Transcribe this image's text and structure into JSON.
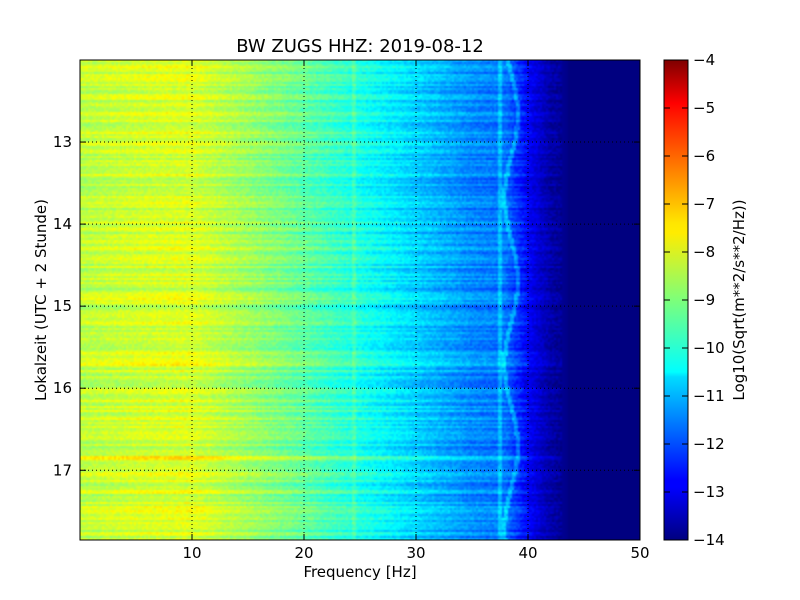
{
  "chart_data": {
    "type": "heatmap",
    "title": "BW ZUGS HHZ: 2019-08-12",
    "xlabel": "Frequency [Hz]",
    "ylabel": "Lokalzeit (UTC + 2 Stunde)",
    "xlim": [
      0,
      50
    ],
    "ylim": [
      17.85,
      12.0
    ],
    "x_ticks": [
      10,
      20,
      30,
      40,
      50
    ],
    "y_ticks": [
      13,
      14,
      15,
      16,
      17
    ],
    "grid": true,
    "colormap": "jet",
    "colorbar": {
      "label": "Log10(Sqrt(m**2/s**2/Hz))",
      "range": [
        -14,
        -4
      ],
      "ticks": [
        -4,
        -5,
        -6,
        -7,
        -8,
        -9,
        -10,
        -11,
        -12,
        -13,
        -14
      ]
    },
    "z_profile_by_frequency": {
      "frequency": [
        0,
        5,
        10,
        15,
        20,
        25,
        30,
        35,
        38,
        40,
        42,
        44,
        50
      ],
      "log10_amplitude": [
        -8.4,
        -8.2,
        -8.1,
        -8.7,
        -9.3,
        -10.0,
        -10.7,
        -11.4,
        -11.6,
        -12.8,
        -13.6,
        -14.0,
        -14.0
      ]
    },
    "notable_features": [
      {
        "label": "persistent line near 37.5 Hz",
        "frequency": 37.5
      },
      {
        "label": "persistent line near 24.5 Hz",
        "frequency": 24.5
      },
      {
        "label": "wandering line near 38-39 Hz",
        "frequency": 38.5
      },
      {
        "label": "bright band near 15.7 h",
        "time": 15.7
      },
      {
        "label": "bright band near 16.85 h",
        "time": 16.85
      }
    ]
  }
}
